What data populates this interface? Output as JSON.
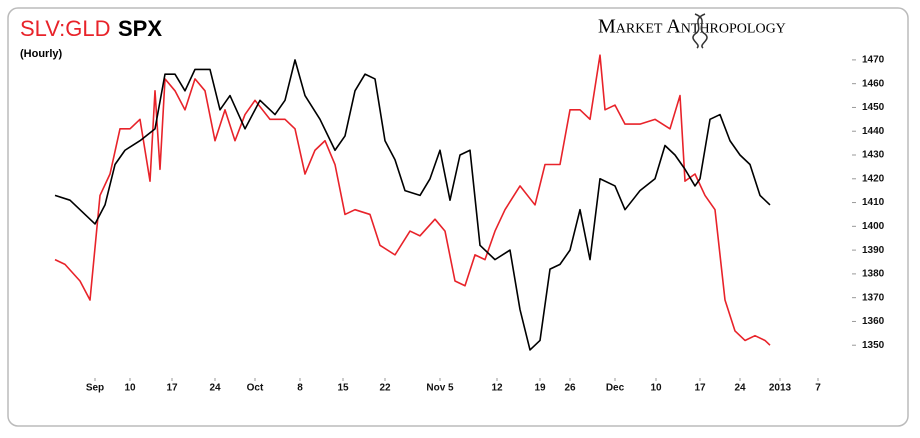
{
  "chart_data": {
    "type": "line",
    "title": "SLV:GLD",
    "title_suffix": "SPX",
    "subtitle": "(Hourly)",
    "brand": "Market Anthropology",
    "xlim": [
      0,
      775
    ],
    "xticks": [
      {
        "value": 40,
        "label": "Sep"
      },
      {
        "value": 75,
        "label": "10"
      },
      {
        "value": 117,
        "label": "17"
      },
      {
        "value": 160,
        "label": "24"
      },
      {
        "value": 200,
        "label": "Oct"
      },
      {
        "value": 245,
        "label": "8"
      },
      {
        "value": 288,
        "label": "15"
      },
      {
        "value": 330,
        "label": "22"
      },
      {
        "value": 385,
        "label": "Nov 5"
      },
      {
        "value": 442,
        "label": "12"
      },
      {
        "value": 485,
        "label": "19"
      },
      {
        "value": 515,
        "label": "26"
      },
      {
        "value": 560,
        "label": "Dec"
      },
      {
        "value": 601,
        "label": "10"
      },
      {
        "value": 645,
        "label": "17"
      },
      {
        "value": 685,
        "label": "24"
      },
      {
        "value": 725,
        "label": "2013"
      },
      {
        "value": 763,
        "label": "7"
      }
    ],
    "ylim": [
      1340,
      1475
    ],
    "yticks": [
      1350,
      1360,
      1370,
      1380,
      1390,
      1400,
      1410,
      1420,
      1430,
      1440,
      1450,
      1460,
      1470
    ],
    "series": [
      {
        "name": "SLV:GLD",
        "color": "#e8232a",
        "x": [
          0,
          10,
          25,
          35,
          45,
          55,
          65,
          75,
          85,
          95,
          100,
          105,
          110,
          120,
          130,
          140,
          150,
          160,
          170,
          180,
          190,
          200,
          215,
          230,
          240,
          250,
          260,
          270,
          280,
          290,
          300,
          315,
          325,
          340,
          355,
          365,
          380,
          390,
          400,
          410,
          420,
          430,
          440,
          450,
          465,
          480,
          490,
          505,
          515,
          525,
          535,
          545,
          550,
          560,
          570,
          585,
          600,
          615,
          625,
          630,
          640,
          650,
          660,
          665,
          670,
          680,
          690,
          700,
          710,
          715
        ],
        "values": [
          1386,
          1384,
          1377,
          1369,
          1413,
          1422,
          1441,
          1441,
          1445,
          1419,
          1457,
          1424,
          1462,
          1457,
          1449,
          1462,
          1457,
          1436,
          1449,
          1436,
          1447,
          1453,
          1445,
          1445,
          1441,
          1422,
          1432,
          1436,
          1426,
          1405,
          1407,
          1405,
          1392,
          1388,
          1398,
          1396,
          1403,
          1398,
          1377,
          1375,
          1388,
          1386,
          1398,
          1407,
          1417,
          1409,
          1426,
          1426,
          1449,
          1449,
          1445,
          1472,
          1449,
          1451,
          1443,
          1443,
          1445,
          1441,
          1455,
          1419,
          1422,
          1413,
          1407,
          1388,
          1369,
          1356,
          1352,
          1354,
          1352,
          1350
        ]
      },
      {
        "name": "SPX",
        "color": "#000000",
        "x": [
          0,
          15,
          30,
          40,
          50,
          60,
          70,
          85,
          100,
          110,
          120,
          130,
          140,
          155,
          165,
          175,
          190,
          205,
          220,
          230,
          240,
          250,
          265,
          280,
          290,
          300,
          310,
          320,
          330,
          340,
          350,
          365,
          375,
          385,
          395,
          405,
          415,
          425,
          440,
          455,
          465,
          475,
          485,
          495,
          505,
          515,
          525,
          535,
          545,
          560,
          570,
          585,
          600,
          610,
          620,
          630,
          640,
          645,
          655,
          665,
          675,
          685,
          695,
          705,
          715
        ],
        "values": [
          1413,
          1411,
          1405,
          1401,
          1409,
          1426,
          1432,
          1436,
          1441,
          1464,
          1464,
          1457,
          1466,
          1466,
          1449,
          1455,
          1441,
          1453,
          1447,
          1453,
          1470,
          1455,
          1445,
          1432,
          1438,
          1457,
          1464,
          1462,
          1436,
          1428,
          1415,
          1413,
          1420,
          1432,
          1411,
          1430,
          1432,
          1392,
          1386,
          1390,
          1365,
          1348,
          1352,
          1382,
          1384,
          1390,
          1407,
          1386,
          1420,
          1417,
          1407,
          1415,
          1420,
          1434,
          1430,
          1424,
          1417,
          1420,
          1445,
          1447,
          1436,
          1430,
          1426,
          1413,
          1409
        ]
      }
    ]
  }
}
